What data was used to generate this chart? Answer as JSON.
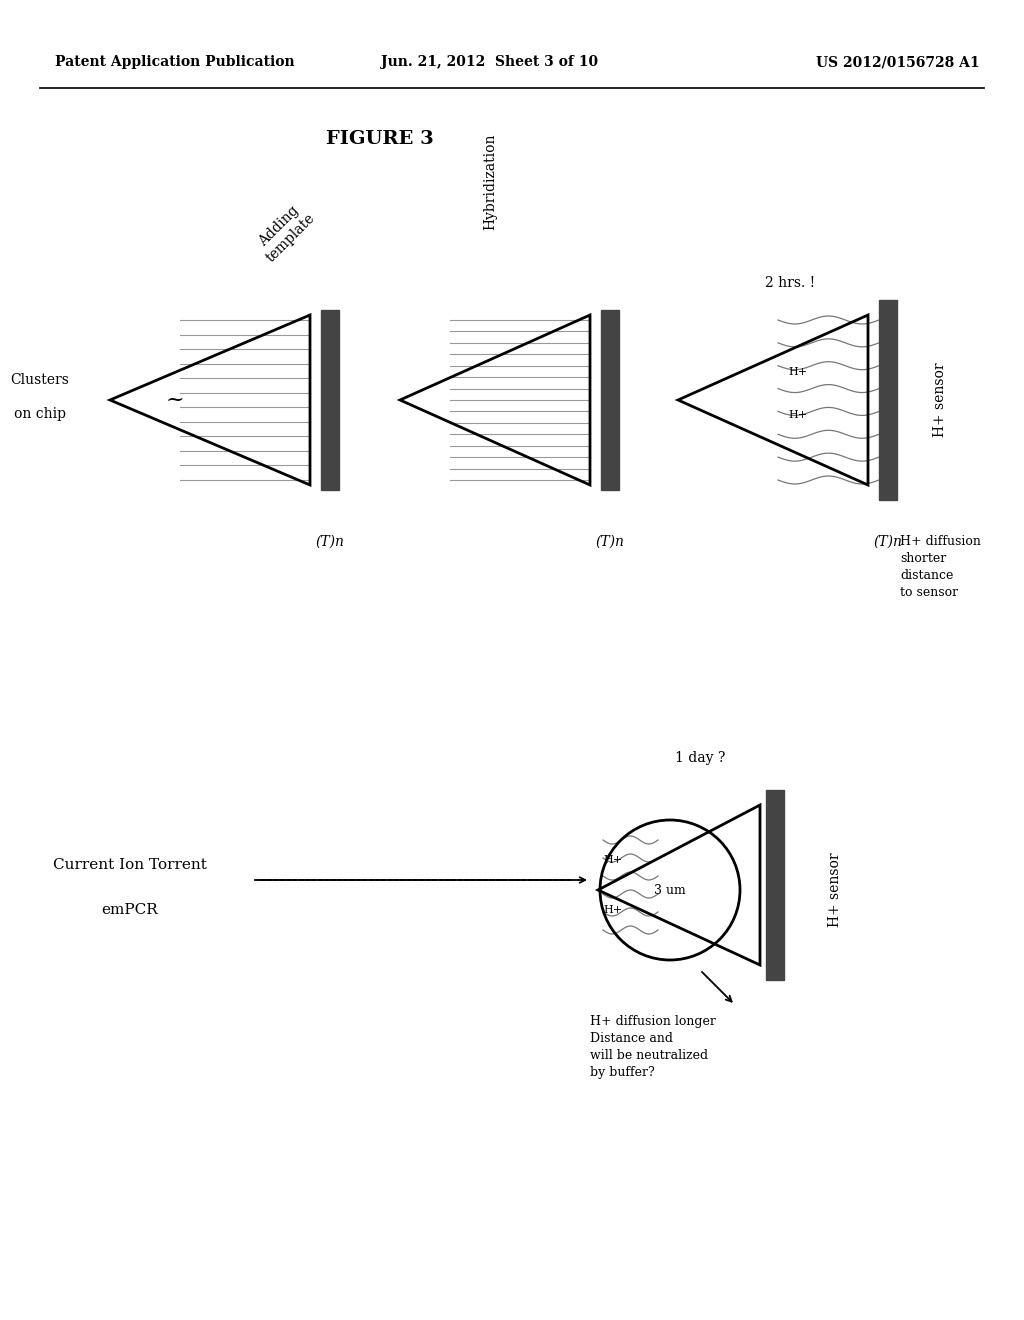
{
  "title": "FIGURE 3",
  "header_left": "Patent Application Publication",
  "header_center": "Jun. 21, 2012  Sheet 3 of 10",
  "header_right": "US 2012/0156728 A1",
  "bg_color": "#ffffff",
  "text_color": "#000000",
  "panel1": {
    "label_top_line1": "Adding",
    "label_top_line2": "template",
    "label_left_line1": "Clusters",
    "label_left_line2": "on chip",
    "label_bottom": "(T)n"
  },
  "panel2": {
    "label_top": "Hybridization",
    "label_bottom": "(T)n"
  },
  "panel3": {
    "label_top": "2 hrs. !",
    "label_right": "H+ sensor",
    "label_bottom": "(T)n",
    "label_hplus1": "H+",
    "label_hplus2": "H+",
    "note_line1": "H+ diffusion",
    "note_line2": "shorter",
    "note_line3": "distance",
    "note_line4": "to sensor"
  },
  "bottom": {
    "label_left_line1": "Current Ion Torrent",
    "label_left_line2": "emPCR",
    "label_top": "1 day ?",
    "label_right": "H+ sensor",
    "circle_label": "3 um",
    "label_hplus1": "H+",
    "label_hplus2": "H+",
    "note_line1": "H+ diffusion longer",
    "note_line2": "Distance and",
    "note_line3": "will be neutralized",
    "note_line4": "by buffer?"
  }
}
